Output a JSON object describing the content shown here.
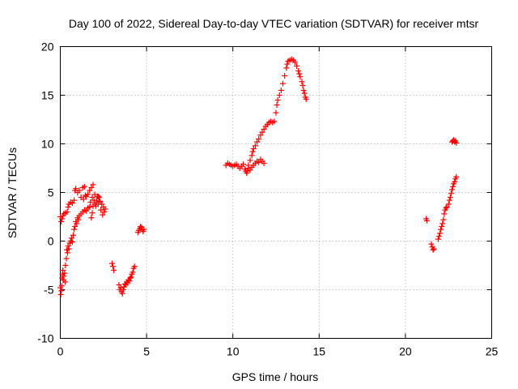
{
  "chart_data": {
    "type": "scatter",
    "title": "Day 100 of 2022, Sidereal Day-to-day VTEC variation (SDTVAR) for receiver mtsr",
    "xlabel": "GPS time / hours",
    "ylabel": "SDTVAR / TECUs",
    "xlim": [
      0,
      25
    ],
    "ylim": [
      -10,
      20
    ],
    "xticks": [
      0,
      5,
      10,
      15,
      20,
      25
    ],
    "yticks": [
      -10,
      -5,
      0,
      5,
      10,
      15,
      20
    ],
    "xtick_labels": [
      "0",
      "5",
      "10",
      "15",
      "20",
      "25"
    ],
    "ytick_labels": [
      "-10",
      "-5",
      "0",
      "5",
      "10",
      "15",
      "20"
    ],
    "grid": true,
    "marker": "+",
    "color": "#ff0000",
    "series": [
      {
        "name": "mtsr",
        "points": [
          [
            0.0,
            2.5
          ],
          [
            0.05,
            2.0
          ],
          [
            0.1,
            2.3
          ],
          [
            0.15,
            2.6
          ],
          [
            0.2,
            2.8
          ],
          [
            0.3,
            2.9
          ],
          [
            0.4,
            3.0
          ],
          [
            0.45,
            3.5
          ],
          [
            0.5,
            3.8
          ],
          [
            0.6,
            4.0
          ],
          [
            0.7,
            3.9
          ],
          [
            0.8,
            4.2
          ],
          [
            0.85,
            5.2
          ],
          [
            0.9,
            5.4
          ],
          [
            1.0,
            5.0
          ],
          [
            1.1,
            5.2
          ],
          [
            1.2,
            4.5
          ],
          [
            1.3,
            5.5
          ],
          [
            1.35,
            4.3
          ],
          [
            1.4,
            5.6
          ],
          [
            1.45,
            4.7
          ],
          [
            1.5,
            4.6
          ],
          [
            1.6,
            4.8
          ],
          [
            1.7,
            5.2
          ],
          [
            1.75,
            4.0
          ],
          [
            1.8,
            5.5
          ],
          [
            1.85,
            4.5
          ],
          [
            1.9,
            5.8
          ],
          [
            1.95,
            4.2
          ],
          [
            2.0,
            4.8
          ],
          [
            2.05,
            3.6
          ],
          [
            2.1,
            4.0
          ],
          [
            2.15,
            4.6
          ],
          [
            2.2,
            3.8
          ],
          [
            2.25,
            4.5
          ],
          [
            2.3,
            4.0
          ],
          [
            2.35,
            3.2
          ],
          [
            2.4,
            3.8
          ],
          [
            2.45,
            2.7
          ],
          [
            2.5,
            3.5
          ],
          [
            2.55,
            3.0
          ],
          [
            2.6,
            3.3
          ],
          [
            0.0,
            -4.8
          ],
          [
            0.03,
            -5.5
          ],
          [
            0.06,
            -5.1
          ],
          [
            0.08,
            -4.6
          ],
          [
            0.1,
            -3.8
          ],
          [
            0.12,
            -3.4
          ],
          [
            0.15,
            -3.0
          ],
          [
            0.18,
            -4.0
          ],
          [
            0.2,
            -3.6
          ],
          [
            0.25,
            -3.3
          ],
          [
            0.28,
            -4.2
          ],
          [
            0.3,
            -2.5
          ],
          [
            0.35,
            -1.8
          ],
          [
            0.38,
            -0.9
          ],
          [
            0.42,
            -1.2
          ],
          [
            0.45,
            -0.5
          ],
          [
            0.5,
            -0.8
          ],
          [
            0.55,
            -0.2
          ],
          [
            0.6,
            0.0
          ],
          [
            0.65,
            0.3
          ],
          [
            0.7,
            -0.1
          ],
          [
            0.75,
            0.6
          ],
          [
            0.8,
            1.2
          ],
          [
            0.85,
            1.5
          ],
          [
            0.9,
            2.0
          ],
          [
            0.95,
            1.8
          ],
          [
            1.0,
            2.4
          ],
          [
            1.05,
            2.2
          ],
          [
            1.1,
            2.6
          ],
          [
            1.2,
            2.8
          ],
          [
            1.3,
            3.0
          ],
          [
            1.4,
            3.2
          ],
          [
            1.5,
            3.1
          ],
          [
            1.6,
            3.4
          ],
          [
            1.7,
            3.5
          ],
          [
            1.8,
            2.4
          ],
          [
            1.85,
            2.9
          ],
          [
            1.9,
            3.6
          ],
          [
            2.0,
            3.8
          ],
          [
            2.1,
            4.2
          ],
          [
            2.2,
            4.6
          ],
          [
            2.3,
            4.1
          ],
          [
            3.0,
            -2.3
          ],
          [
            3.05,
            -2.6
          ],
          [
            3.1,
            -3.0
          ],
          [
            3.4,
            -4.5
          ],
          [
            3.45,
            -5.0
          ],
          [
            3.5,
            -4.8
          ],
          [
            3.55,
            -5.2
          ],
          [
            3.6,
            -5.4
          ],
          [
            3.65,
            -5.0
          ],
          [
            3.7,
            -4.7
          ],
          [
            3.75,
            -4.4
          ],
          [
            3.8,
            -4.5
          ],
          [
            3.85,
            -4.2
          ],
          [
            3.9,
            -4.3
          ],
          [
            3.95,
            -4.0
          ],
          [
            4.0,
            -4.1
          ],
          [
            4.05,
            -3.8
          ],
          [
            4.1,
            -3.7
          ],
          [
            4.15,
            -3.4
          ],
          [
            4.2,
            -3.2
          ],
          [
            4.25,
            -2.8
          ],
          [
            4.3,
            -2.6
          ],
          [
            4.5,
            0.9
          ],
          [
            4.55,
            1.1
          ],
          [
            4.6,
            1.3
          ],
          [
            4.65,
            1.5
          ],
          [
            4.7,
            1.4
          ],
          [
            4.75,
            1.2
          ],
          [
            4.8,
            1.0
          ],
          [
            4.85,
            1.2
          ],
          [
            9.6,
            7.8
          ],
          [
            9.7,
            8.0
          ],
          [
            9.8,
            7.9
          ],
          [
            9.9,
            7.8
          ],
          [
            10.0,
            7.7
          ],
          [
            10.1,
            7.8
          ],
          [
            10.2,
            7.9
          ],
          [
            10.3,
            7.7
          ],
          [
            10.4,
            7.5
          ],
          [
            10.5,
            7.7
          ],
          [
            10.6,
            7.9
          ],
          [
            10.7,
            7.4
          ],
          [
            10.75,
            7.2
          ],
          [
            10.8,
            7.0
          ],
          [
            10.85,
            7.2
          ],
          [
            10.9,
            7.5
          ],
          [
            11.0,
            7.3
          ],
          [
            11.1,
            7.6
          ],
          [
            11.2,
            7.8
          ],
          [
            11.3,
            8.0
          ],
          [
            11.4,
            8.2
          ],
          [
            11.5,
            8.1
          ],
          [
            11.6,
            8.4
          ],
          [
            11.7,
            8.2
          ],
          [
            11.8,
            8.0
          ],
          [
            10.9,
            7.8
          ],
          [
            11.0,
            8.3
          ],
          [
            11.1,
            8.8
          ],
          [
            11.15,
            9.2
          ],
          [
            11.2,
            9.5
          ],
          [
            11.3,
            9.8
          ],
          [
            11.4,
            10.2
          ],
          [
            11.5,
            10.5
          ],
          [
            11.6,
            10.9
          ],
          [
            11.7,
            11.2
          ],
          [
            11.8,
            11.5
          ],
          [
            11.9,
            11.8
          ],
          [
            12.0,
            12.0
          ],
          [
            12.1,
            12.2
          ],
          [
            12.2,
            12.3
          ],
          [
            12.3,
            12.2
          ],
          [
            12.4,
            12.3
          ],
          [
            12.5,
            13.2
          ],
          [
            12.55,
            14.0
          ],
          [
            12.6,
            14.5
          ],
          [
            12.7,
            15.0
          ],
          [
            12.8,
            15.5
          ],
          [
            12.9,
            16.2
          ],
          [
            13.0,
            17.0
          ],
          [
            13.1,
            17.8
          ],
          [
            13.15,
            18.2
          ],
          [
            13.2,
            18.5
          ],
          [
            13.3,
            18.6
          ],
          [
            13.4,
            18.7
          ],
          [
            13.5,
            18.6
          ],
          [
            13.6,
            18.4
          ],
          [
            13.7,
            18.0
          ],
          [
            13.8,
            17.5
          ],
          [
            13.85,
            17.2
          ],
          [
            13.9,
            16.9
          ],
          [
            14.0,
            16.4
          ],
          [
            14.05,
            16.0
          ],
          [
            14.1,
            15.5
          ],
          [
            14.15,
            15.2
          ],
          [
            14.2,
            14.8
          ],
          [
            14.25,
            14.6
          ],
          [
            21.2,
            2.3
          ],
          [
            21.25,
            2.1
          ],
          [
            21.5,
            -0.3
          ],
          [
            21.55,
            -0.6
          ],
          [
            21.6,
            -0.9
          ],
          [
            21.65,
            -0.8
          ],
          [
            21.9,
            0.2
          ],
          [
            21.95,
            0.5
          ],
          [
            22.0,
            0.8
          ],
          [
            22.05,
            1.2
          ],
          [
            22.1,
            1.5
          ],
          [
            22.15,
            1.8
          ],
          [
            22.2,
            2.2
          ],
          [
            22.25,
            2.8
          ],
          [
            22.3,
            3.2
          ],
          [
            22.35,
            3.4
          ],
          [
            22.4,
            3.5
          ],
          [
            22.5,
            3.8
          ],
          [
            22.55,
            4.2
          ],
          [
            22.6,
            4.5
          ],
          [
            22.65,
            4.9
          ],
          [
            22.7,
            5.3
          ],
          [
            22.75,
            5.6
          ],
          [
            22.8,
            5.9
          ],
          [
            22.85,
            6.1
          ],
          [
            22.9,
            6.4
          ],
          [
            22.95,
            6.6
          ],
          [
            22.7,
            10.2
          ],
          [
            22.75,
            10.3
          ],
          [
            22.8,
            10.4
          ],
          [
            22.85,
            10.2
          ],
          [
            22.9,
            10.3
          ],
          [
            22.95,
            10.1
          ]
        ]
      }
    ]
  }
}
